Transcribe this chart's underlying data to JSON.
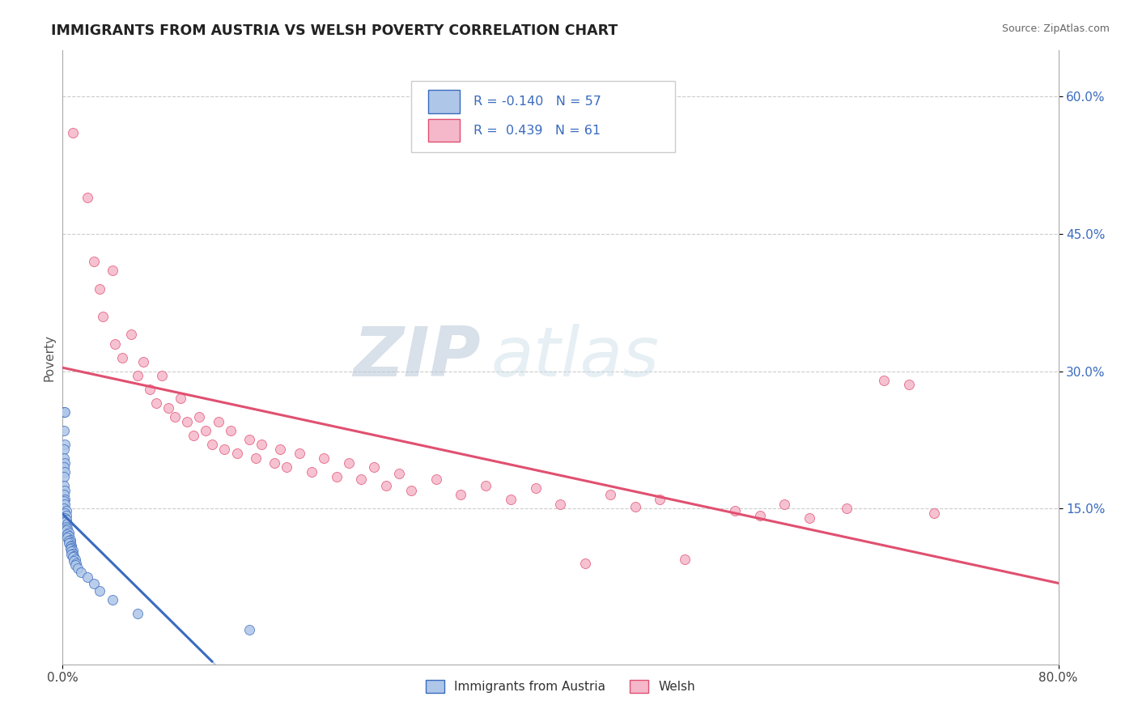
{
  "title": "IMMIGRANTS FROM AUSTRIA VS WELSH POVERTY CORRELATION CHART",
  "source": "Source: ZipAtlas.com",
  "ylabel": "Poverty",
  "xlim": [
    0.0,
    0.8
  ],
  "ylim": [
    -0.02,
    0.65
  ],
  "austria_color": "#aec6e8",
  "welsh_color": "#f5b8cb",
  "austria_line_color": "#3a6bbf",
  "welsh_line_color": "#e05070",
  "austria_dash_color": "#aabbdd",
  "bg_color": "#ffffff",
  "grid_color": "#cccccc",
  "watermark_zip": "ZIP",
  "watermark_atlas": "atlas",
  "right_yticks": [
    0.6,
    0.45,
    0.3,
    0.15
  ],
  "right_yticklabels": [
    "60.0%",
    "45.0%",
    "30.0%",
    "15.0%"
  ],
  "xticks": [
    0.0,
    0.8
  ],
  "xticklabels": [
    "0.0%",
    "80.0%"
  ],
  "austria_scatter": [
    [
      0.001,
      0.255
    ],
    [
      0.002,
      0.255
    ],
    [
      0.001,
      0.235
    ],
    [
      0.002,
      0.22
    ],
    [
      0.001,
      0.215
    ],
    [
      0.001,
      0.205
    ],
    [
      0.002,
      0.2
    ],
    [
      0.001,
      0.195
    ],
    [
      0.002,
      0.19
    ],
    [
      0.001,
      0.185
    ],
    [
      0.001,
      0.175
    ],
    [
      0.002,
      0.17
    ],
    [
      0.001,
      0.165
    ],
    [
      0.002,
      0.16
    ],
    [
      0.001,
      0.158
    ],
    [
      0.002,
      0.155
    ],
    [
      0.001,
      0.15
    ],
    [
      0.003,
      0.148
    ],
    [
      0.002,
      0.145
    ],
    [
      0.003,
      0.142
    ],
    [
      0.002,
      0.14
    ],
    [
      0.003,
      0.138
    ],
    [
      0.002,
      0.135
    ],
    [
      0.004,
      0.133
    ],
    [
      0.003,
      0.13
    ],
    [
      0.004,
      0.128
    ],
    [
      0.003,
      0.126
    ],
    [
      0.005,
      0.124
    ],
    [
      0.004,
      0.122
    ],
    [
      0.005,
      0.12
    ],
    [
      0.004,
      0.118
    ],
    [
      0.006,
      0.116
    ],
    [
      0.005,
      0.115
    ],
    [
      0.006,
      0.113
    ],
    [
      0.005,
      0.112
    ],
    [
      0.007,
      0.11
    ],
    [
      0.006,
      0.109
    ],
    [
      0.007,
      0.107
    ],
    [
      0.006,
      0.106
    ],
    [
      0.008,
      0.104
    ],
    [
      0.007,
      0.103
    ],
    [
      0.008,
      0.101
    ],
    [
      0.007,
      0.1
    ],
    [
      0.009,
      0.098
    ],
    [
      0.008,
      0.097
    ],
    [
      0.01,
      0.095
    ],
    [
      0.009,
      0.093
    ],
    [
      0.011,
      0.09
    ],
    [
      0.01,
      0.088
    ],
    [
      0.012,
      0.085
    ],
    [
      0.015,
      0.08
    ],
    [
      0.02,
      0.075
    ],
    [
      0.025,
      0.068
    ],
    [
      0.03,
      0.06
    ],
    [
      0.04,
      0.05
    ],
    [
      0.06,
      0.035
    ],
    [
      0.15,
      0.018
    ]
  ],
  "welsh_scatter": [
    [
      0.008,
      0.56
    ],
    [
      0.02,
      0.49
    ],
    [
      0.025,
      0.42
    ],
    [
      0.03,
      0.39
    ],
    [
      0.032,
      0.36
    ],
    [
      0.04,
      0.41
    ],
    [
      0.042,
      0.33
    ],
    [
      0.048,
      0.315
    ],
    [
      0.055,
      0.34
    ],
    [
      0.06,
      0.295
    ],
    [
      0.065,
      0.31
    ],
    [
      0.07,
      0.28
    ],
    [
      0.075,
      0.265
    ],
    [
      0.08,
      0.295
    ],
    [
      0.085,
      0.26
    ],
    [
      0.09,
      0.25
    ],
    [
      0.095,
      0.27
    ],
    [
      0.1,
      0.245
    ],
    [
      0.105,
      0.23
    ],
    [
      0.11,
      0.25
    ],
    [
      0.115,
      0.235
    ],
    [
      0.12,
      0.22
    ],
    [
      0.125,
      0.245
    ],
    [
      0.13,
      0.215
    ],
    [
      0.135,
      0.235
    ],
    [
      0.14,
      0.21
    ],
    [
      0.15,
      0.225
    ],
    [
      0.155,
      0.205
    ],
    [
      0.16,
      0.22
    ],
    [
      0.17,
      0.2
    ],
    [
      0.175,
      0.215
    ],
    [
      0.18,
      0.195
    ],
    [
      0.19,
      0.21
    ],
    [
      0.2,
      0.19
    ],
    [
      0.21,
      0.205
    ],
    [
      0.22,
      0.185
    ],
    [
      0.23,
      0.2
    ],
    [
      0.24,
      0.182
    ],
    [
      0.25,
      0.195
    ],
    [
      0.26,
      0.175
    ],
    [
      0.27,
      0.188
    ],
    [
      0.28,
      0.17
    ],
    [
      0.3,
      0.182
    ],
    [
      0.32,
      0.165
    ],
    [
      0.34,
      0.175
    ],
    [
      0.36,
      0.16
    ],
    [
      0.38,
      0.172
    ],
    [
      0.4,
      0.155
    ],
    [
      0.42,
      0.09
    ],
    [
      0.44,
      0.165
    ],
    [
      0.46,
      0.152
    ],
    [
      0.48,
      0.16
    ],
    [
      0.5,
      0.095
    ],
    [
      0.54,
      0.148
    ],
    [
      0.56,
      0.142
    ],
    [
      0.58,
      0.155
    ],
    [
      0.6,
      0.14
    ],
    [
      0.63,
      0.15
    ],
    [
      0.66,
      0.29
    ],
    [
      0.68,
      0.285
    ],
    [
      0.7,
      0.145
    ]
  ]
}
